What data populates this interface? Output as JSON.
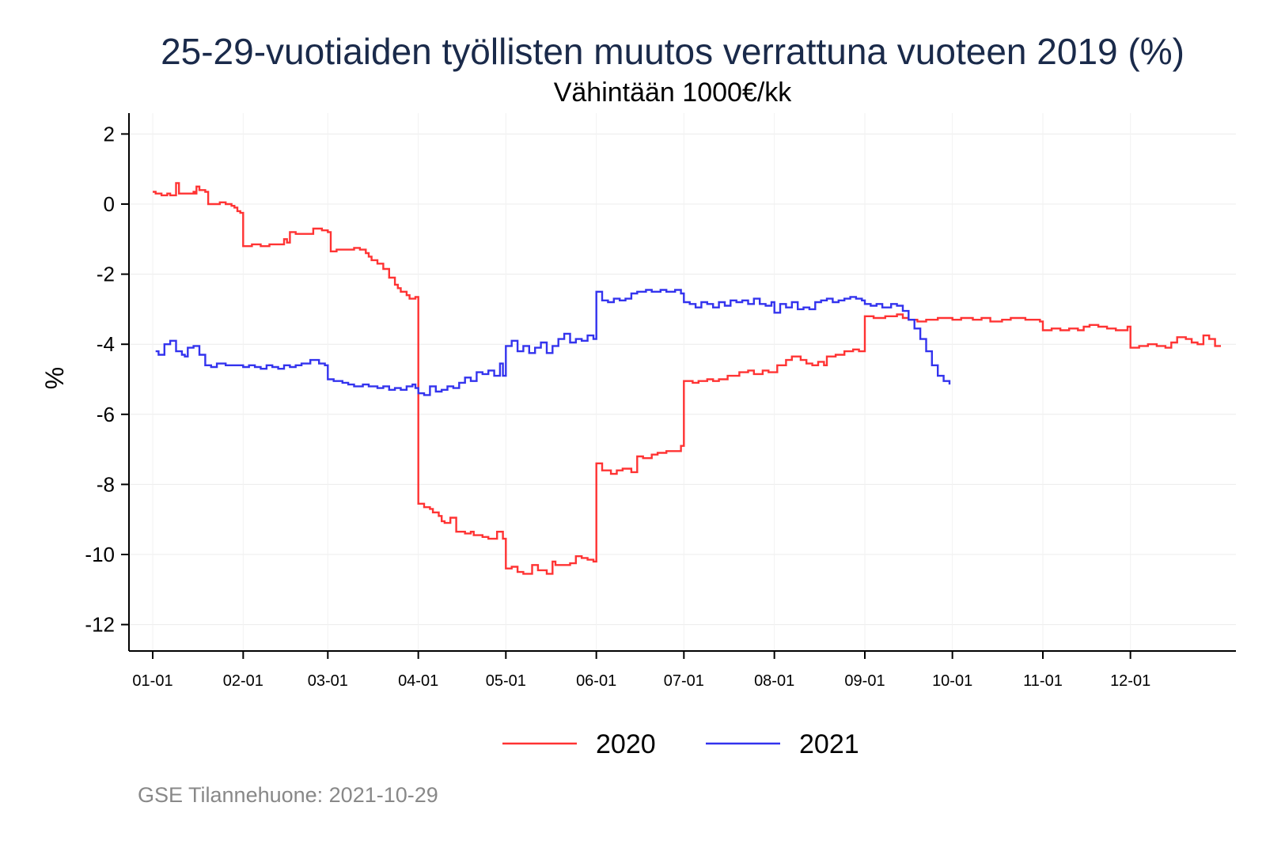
{
  "chart_data": {
    "type": "line",
    "title": "25-29-vuotiaiden työllisten muutos verrattuna vuoteen 2019 (%)",
    "subtitle": "Vähintään 1000€/kk",
    "xlabel": "",
    "ylabel": "%",
    "x_tick_labels": [
      "01-01",
      "02-01",
      "03-01",
      "04-01",
      "05-01",
      "06-01",
      "07-01",
      "08-01",
      "09-01",
      "10-01",
      "11-01",
      "12-01"
    ],
    "x_ticks_day": [
      1,
      32,
      61,
      92,
      122,
      153,
      183,
      214,
      245,
      275,
      306,
      336
    ],
    "xlim_day": [
      0,
      376
    ],
    "y_ticks": [
      2,
      0,
      -2,
      -4,
      -6,
      -8,
      -10,
      -12
    ],
    "ylim": [
      -12.5,
      2.5
    ],
    "grid": true,
    "legend_position": "bottom",
    "series": [
      {
        "name": "2020",
        "color": "#ff3333",
        "points": [
          [
            1,
            0.35
          ],
          [
            2,
            0.3
          ],
          [
            4,
            0.25
          ],
          [
            6,
            0.3
          ],
          [
            7,
            0.25
          ],
          [
            9,
            0.6
          ],
          [
            10,
            0.3
          ],
          [
            13,
            0.3
          ],
          [
            16,
            0.3
          ],
          [
            13,
            0.3
          ],
          [
            15,
            0.35
          ],
          [
            16,
            0.3
          ],
          [
            13,
            0.3
          ],
          [
            13,
            0.3
          ],
          [
            14,
            0.3
          ],
          [
            16,
            0.5
          ],
          [
            17,
            0.4
          ],
          [
            19,
            0.35
          ],
          [
            20,
            0.0
          ],
          [
            22,
            0.0
          ],
          [
            24,
            0.05
          ],
          [
            26,
            0.0
          ],
          [
            28,
            -0.05
          ],
          [
            29,
            -0.1
          ],
          [
            30,
            -0.2
          ],
          [
            31,
            -0.25
          ],
          [
            32,
            -1.2
          ],
          [
            35,
            -1.15
          ],
          [
            38,
            -1.2
          ],
          [
            41,
            -1.15
          ],
          [
            44,
            -1.15
          ],
          [
            46,
            -1.0
          ],
          [
            47,
            -1.1
          ],
          [
            48,
            -0.8
          ],
          [
            50,
            -0.85
          ],
          [
            54,
            -0.85
          ],
          [
            56,
            -0.7
          ],
          [
            58,
            -0.7
          ],
          [
            59,
            -0.75
          ],
          [
            61,
            -0.8
          ],
          [
            62,
            -1.35
          ],
          [
            64,
            -1.3
          ],
          [
            67,
            -1.3
          ],
          [
            70,
            -1.25
          ],
          [
            72,
            -1.3
          ],
          [
            74,
            -1.4
          ],
          [
            75,
            -1.5
          ],
          [
            76,
            -1.6
          ],
          [
            78,
            -1.7
          ],
          [
            80,
            -1.85
          ],
          [
            82,
            -2.1
          ],
          [
            84,
            -2.3
          ],
          [
            85,
            -2.4
          ],
          [
            86,
            -2.5
          ],
          [
            88,
            -2.6
          ],
          [
            89,
            -2.7
          ],
          [
            91,
            -2.65
          ],
          [
            92,
            -8.55
          ],
          [
            94,
            -8.65
          ],
          [
            96,
            -8.7
          ],
          [
            97,
            -8.8
          ],
          [
            99,
            -8.9
          ],
          [
            100,
            -9.05
          ],
          [
            101,
            -9.1
          ],
          [
            103,
            -8.95
          ],
          [
            105,
            -9.35
          ],
          [
            108,
            -9.4
          ],
          [
            110,
            -9.35
          ],
          [
            111,
            -9.45
          ],
          [
            114,
            -9.5
          ],
          [
            116,
            -9.55
          ],
          [
            119,
            -9.35
          ],
          [
            121,
            -9.55
          ],
          [
            122,
            -10.4
          ],
          [
            124,
            -10.35
          ],
          [
            126,
            -10.5
          ],
          [
            128,
            -10.55
          ],
          [
            131,
            -10.3
          ],
          [
            133,
            -10.45
          ],
          [
            136,
            -10.55
          ],
          [
            138,
            -10.2
          ],
          [
            139,
            -10.3
          ],
          [
            144,
            -10.25
          ],
          [
            146,
            -10.05
          ],
          [
            148,
            -10.1
          ],
          [
            150,
            -10.15
          ],
          [
            152,
            -10.2
          ],
          [
            153,
            -7.4
          ],
          [
            155,
            -7.6
          ],
          [
            158,
            -7.7
          ],
          [
            160,
            -7.6
          ],
          [
            162,
            -7.55
          ],
          [
            165,
            -7.65
          ],
          [
            167,
            -7.2
          ],
          [
            169,
            -7.25
          ],
          [
            172,
            -7.15
          ],
          [
            174,
            -7.1
          ],
          [
            177,
            -7.05
          ],
          [
            180,
            -7.05
          ],
          [
            182,
            -6.9
          ],
          [
            183,
            -5.05
          ],
          [
            186,
            -5.1
          ],
          [
            188,
            -5.05
          ],
          [
            191,
            -5.0
          ],
          [
            193,
            -5.05
          ],
          [
            195,
            -5.0
          ],
          [
            197,
            -5.0
          ],
          [
            198,
            -4.9
          ],
          [
            200,
            -4.9
          ],
          [
            202,
            -4.8
          ],
          [
            205,
            -4.75
          ],
          [
            207,
            -4.85
          ],
          [
            210,
            -4.75
          ],
          [
            212,
            -4.8
          ],
          [
            214,
            -4.8
          ],
          [
            215,
            -4.6
          ],
          [
            217,
            -4.6
          ],
          [
            218,
            -4.45
          ],
          [
            220,
            -4.35
          ],
          [
            223,
            -4.45
          ],
          [
            225,
            -4.55
          ],
          [
            227,
            -4.6
          ],
          [
            229,
            -4.5
          ],
          [
            231,
            -4.6
          ],
          [
            232,
            -4.35
          ],
          [
            235,
            -4.3
          ],
          [
            238,
            -4.2
          ],
          [
            241,
            -4.15
          ],
          [
            243,
            -4.2
          ],
          [
            244,
            -4.2
          ],
          [
            245,
            -3.2
          ],
          [
            248,
            -3.25
          ],
          [
            252,
            -3.2
          ],
          [
            256,
            -3.15
          ],
          [
            258,
            -3.25
          ],
          [
            260,
            -3.3
          ],
          [
            263,
            -3.35
          ],
          [
            266,
            -3.3
          ],
          [
            270,
            -3.25
          ],
          [
            275,
            -3.3
          ],
          [
            278,
            -3.25
          ],
          [
            282,
            -3.3
          ],
          [
            285,
            -3.25
          ],
          [
            288,
            -3.35
          ],
          [
            292,
            -3.3
          ],
          [
            295,
            -3.25
          ],
          [
            300,
            -3.3
          ],
          [
            305,
            -3.35
          ],
          [
            306,
            -3.6
          ],
          [
            309,
            -3.55
          ],
          [
            312,
            -3.6
          ],
          [
            315,
            -3.55
          ],
          [
            318,
            -3.6
          ],
          [
            320,
            -3.5
          ],
          [
            322,
            -3.45
          ],
          [
            325,
            -3.5
          ],
          [
            328,
            -3.55
          ],
          [
            331,
            -3.6
          ],
          [
            333,
            -3.6
          ],
          [
            335,
            -3.5
          ],
          [
            336,
            -4.1
          ],
          [
            339,
            -4.05
          ],
          [
            342,
            -4.0
          ],
          [
            345,
            -4.05
          ],
          [
            348,
            -4.1
          ],
          [
            350,
            -3.95
          ],
          [
            352,
            -3.8
          ],
          [
            355,
            -3.85
          ],
          [
            357,
            -3.95
          ],
          [
            359,
            -4.0
          ],
          [
            361,
            -3.75
          ],
          [
            363,
            -3.85
          ],
          [
            365,
            -4.05
          ],
          [
            367,
            -4.05
          ]
        ]
      },
      {
        "name": "2021",
        "color": "#3333ee",
        "points": [
          [
            2,
            -4.2
          ],
          [
            3,
            -4.3
          ],
          [
            5,
            -4.0
          ],
          [
            7,
            -3.9
          ],
          [
            8,
            -3.9
          ],
          [
            9,
            -4.2
          ],
          [
            11,
            -4.3
          ],
          [
            12,
            -4.35
          ],
          [
            13,
            -4.1
          ],
          [
            15,
            -4.05
          ],
          [
            17,
            -4.3
          ],
          [
            19,
            -4.6
          ],
          [
            21,
            -4.65
          ],
          [
            23,
            -4.55
          ],
          [
            26,
            -4.6
          ],
          [
            28,
            -4.6
          ],
          [
            31,
            -4.6
          ],
          [
            32,
            -4.65
          ],
          [
            34,
            -4.6
          ],
          [
            36,
            -4.65
          ],
          [
            38,
            -4.7
          ],
          [
            40,
            -4.6
          ],
          [
            42,
            -4.65
          ],
          [
            44,
            -4.7
          ],
          [
            46,
            -4.6
          ],
          [
            48,
            -4.65
          ],
          [
            50,
            -4.6
          ],
          [
            52,
            -4.55
          ],
          [
            55,
            -4.45
          ],
          [
            58,
            -4.55
          ],
          [
            60,
            -4.6
          ],
          [
            61,
            -5.0
          ],
          [
            63,
            -5.05
          ],
          [
            66,
            -5.1
          ],
          [
            68,
            -5.15
          ],
          [
            70,
            -5.2
          ],
          [
            73,
            -5.15
          ],
          [
            75,
            -5.2
          ],
          [
            78,
            -5.25
          ],
          [
            80,
            -5.2
          ],
          [
            82,
            -5.3
          ],
          [
            84,
            -5.25
          ],
          [
            86,
            -5.3
          ],
          [
            88,
            -5.2
          ],
          [
            90,
            -5.15
          ],
          [
            91,
            -5.25
          ],
          [
            92,
            -5.4
          ],
          [
            94,
            -5.45
          ],
          [
            96,
            -5.2
          ],
          [
            98,
            -5.35
          ],
          [
            100,
            -5.3
          ],
          [
            102,
            -5.2
          ],
          [
            104,
            -5.25
          ],
          [
            106,
            -5.1
          ],
          [
            108,
            -4.95
          ],
          [
            110,
            -5.05
          ],
          [
            112,
            -4.8
          ],
          [
            114,
            -4.85
          ],
          [
            116,
            -4.75
          ],
          [
            118,
            -4.9
          ],
          [
            120,
            -4.55
          ],
          [
            121,
            -4.9
          ],
          [
            122,
            -4.05
          ],
          [
            124,
            -3.9
          ],
          [
            126,
            -4.2
          ],
          [
            128,
            -4.05
          ],
          [
            130,
            -4.25
          ],
          [
            132,
            -4.1
          ],
          [
            134,
            -3.95
          ],
          [
            136,
            -4.25
          ],
          [
            138,
            -4.05
          ],
          [
            140,
            -3.85
          ],
          [
            142,
            -3.7
          ],
          [
            144,
            -3.95
          ],
          [
            146,
            -3.85
          ],
          [
            148,
            -3.9
          ],
          [
            150,
            -3.75
          ],
          [
            152,
            -3.85
          ],
          [
            153,
            -2.5
          ],
          [
            155,
            -2.75
          ],
          [
            157,
            -2.8
          ],
          [
            159,
            -2.7
          ],
          [
            161,
            -2.75
          ],
          [
            163,
            -2.7
          ],
          [
            165,
            -2.55
          ],
          [
            167,
            -2.5
          ],
          [
            170,
            -2.45
          ],
          [
            172,
            -2.5
          ],
          [
            175,
            -2.45
          ],
          [
            177,
            -2.5
          ],
          [
            180,
            -2.45
          ],
          [
            182,
            -2.55
          ],
          [
            183,
            -2.8
          ],
          [
            185,
            -2.85
          ],
          [
            187,
            -2.95
          ],
          [
            189,
            -2.8
          ],
          [
            191,
            -2.85
          ],
          [
            193,
            -2.95
          ],
          [
            195,
            -2.8
          ],
          [
            197,
            -2.9
          ],
          [
            199,
            -2.75
          ],
          [
            201,
            -2.8
          ],
          [
            203,
            -2.75
          ],
          [
            205,
            -2.85
          ],
          [
            207,
            -2.7
          ],
          [
            209,
            -2.85
          ],
          [
            211,
            -2.9
          ],
          [
            213,
            -2.8
          ],
          [
            214,
            -3.1
          ],
          [
            216,
            -2.85
          ],
          [
            218,
            -2.95
          ],
          [
            220,
            -2.8
          ],
          [
            222,
            -3.0
          ],
          [
            224,
            -2.95
          ],
          [
            226,
            -3.0
          ],
          [
            228,
            -2.8
          ],
          [
            230,
            -2.75
          ],
          [
            232,
            -2.7
          ],
          [
            234,
            -2.8
          ],
          [
            236,
            -2.75
          ],
          [
            238,
            -2.7
          ],
          [
            240,
            -2.65
          ],
          [
            242,
            -2.7
          ],
          [
            244,
            -2.75
          ],
          [
            245,
            -2.85
          ],
          [
            247,
            -2.9
          ],
          [
            249,
            -2.85
          ],
          [
            251,
            -2.95
          ],
          [
            254,
            -2.85
          ],
          [
            256,
            -2.9
          ],
          [
            258,
            -3.05
          ],
          [
            260,
            -3.3
          ],
          [
            262,
            -3.55
          ],
          [
            264,
            -3.85
          ],
          [
            266,
            -4.2
          ],
          [
            268,
            -4.6
          ],
          [
            270,
            -4.9
          ],
          [
            272,
            -5.05
          ],
          [
            274,
            -5.15
          ]
        ]
      }
    ]
  },
  "footnote": "GSE Tilannehuone: 2021-10-29"
}
